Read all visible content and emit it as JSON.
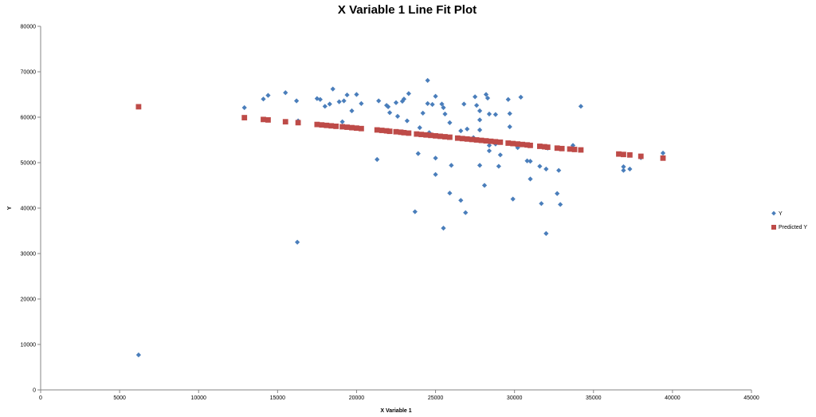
{
  "chart_data": {
    "type": "scatter",
    "title": "X Variable 1 Line Fit  Plot",
    "xlabel": "X Variable 1",
    "ylabel": "Y",
    "xlim": [
      0,
      45000
    ],
    "ylim": [
      0,
      80000
    ],
    "xticks": [
      "0",
      "5000",
      "10000",
      "15000",
      "20000",
      "25000",
      "30000",
      "35000",
      "40000",
      "45000"
    ],
    "yticks": [
      "0",
      "10000",
      "20000",
      "30000",
      "40000",
      "50000",
      "60000",
      "70000",
      "80000"
    ],
    "grid": false,
    "legend_position": "right",
    "series": [
      {
        "name": "Y",
        "color": "#4a7ebb",
        "marker": "diamond",
        "points": [
          [
            6200,
            7700
          ],
          [
            12900,
            62100
          ],
          [
            14100,
            64000
          ],
          [
            14400,
            64800
          ],
          [
            15500,
            65400
          ],
          [
            16200,
            63600
          ],
          [
            16300,
            59200
          ],
          [
            16250,
            32500
          ],
          [
            17500,
            64100
          ],
          [
            17700,
            63900
          ],
          [
            18000,
            62400
          ],
          [
            18300,
            62900
          ],
          [
            18500,
            66200
          ],
          [
            18900,
            63400
          ],
          [
            19100,
            59000
          ],
          [
            19200,
            63600
          ],
          [
            19400,
            64900
          ],
          [
            19700,
            61400
          ],
          [
            20000,
            65000
          ],
          [
            20300,
            63000
          ],
          [
            21300,
            50700
          ],
          [
            21400,
            63600
          ],
          [
            21900,
            62600
          ],
          [
            22000,
            62300
          ],
          [
            22100,
            61000
          ],
          [
            22500,
            63200
          ],
          [
            22600,
            60200
          ],
          [
            22900,
            63500
          ],
          [
            23000,
            64000
          ],
          [
            23300,
            65200
          ],
          [
            23200,
            59200
          ],
          [
            23700,
            39200
          ],
          [
            23900,
            52000
          ],
          [
            24000,
            57700
          ],
          [
            24200,
            60900
          ],
          [
            24500,
            68100
          ],
          [
            24500,
            63000
          ],
          [
            24600,
            56600
          ],
          [
            24800,
            62800
          ],
          [
            25000,
            64600
          ],
          [
            25000,
            51000
          ],
          [
            25000,
            47400
          ],
          [
            25400,
            62900
          ],
          [
            25500,
            62100
          ],
          [
            25500,
            35600
          ],
          [
            25600,
            60700
          ],
          [
            25900,
            58800
          ],
          [
            26000,
            49400
          ],
          [
            25900,
            43300
          ],
          [
            26600,
            57000
          ],
          [
            26600,
            41700
          ],
          [
            26800,
            62900
          ],
          [
            27000,
            57400
          ],
          [
            26900,
            39000
          ],
          [
            27400,
            55500
          ],
          [
            27500,
            64500
          ],
          [
            27600,
            62600
          ],
          [
            27800,
            61400
          ],
          [
            27800,
            59400
          ],
          [
            27800,
            57200
          ],
          [
            27800,
            49400
          ],
          [
            28100,
            45000
          ],
          [
            28200,
            65000
          ],
          [
            28300,
            64200
          ],
          [
            28400,
            60700
          ],
          [
            28400,
            53800
          ],
          [
            28400,
            52600
          ],
          [
            28800,
            60600
          ],
          [
            28800,
            54100
          ],
          [
            29000,
            49200
          ],
          [
            29100,
            51700
          ],
          [
            29600,
            63900
          ],
          [
            29700,
            60800
          ],
          [
            29700,
            57900
          ],
          [
            29900,
            42000
          ],
          [
            30200,
            53300
          ],
          [
            30400,
            64400
          ],
          [
            30800,
            50400
          ],
          [
            31000,
            50300
          ],
          [
            31000,
            46400
          ],
          [
            31600,
            49200
          ],
          [
            31700,
            41000
          ],
          [
            32000,
            48600
          ],
          [
            32000,
            34400
          ],
          [
            32100,
            53200
          ],
          [
            32700,
            43200
          ],
          [
            32800,
            48300
          ],
          [
            32900,
            40800
          ],
          [
            33500,
            52900
          ],
          [
            33700,
            53800
          ],
          [
            34200,
            62400
          ],
          [
            36900,
            49100
          ],
          [
            36900,
            48300
          ],
          [
            37300,
            48600
          ],
          [
            38000,
            51100
          ],
          [
            39400,
            52100
          ]
        ]
      },
      {
        "name": "Predicted Y",
        "color": "#be4b48",
        "marker": "square",
        "points": [
          [
            6200,
            62300
          ],
          [
            12900,
            59900
          ],
          [
            14100,
            59500
          ],
          [
            14400,
            59400
          ],
          [
            15500,
            59000
          ],
          [
            16300,
            58800
          ],
          [
            17500,
            58400
          ],
          [
            17800,
            58300
          ],
          [
            18100,
            58200
          ],
          [
            18400,
            58100
          ],
          [
            18700,
            58000
          ],
          [
            19100,
            57900
          ],
          [
            19400,
            57800
          ],
          [
            19700,
            57700
          ],
          [
            20000,
            57600
          ],
          [
            20300,
            57500
          ],
          [
            21300,
            57200
          ],
          [
            21600,
            57100
          ],
          [
            21900,
            57000
          ],
          [
            22100,
            56900
          ],
          [
            22500,
            56800
          ],
          [
            22800,
            56700
          ],
          [
            23000,
            56600
          ],
          [
            23300,
            56500
          ],
          [
            23800,
            56300
          ],
          [
            24100,
            56200
          ],
          [
            24400,
            56100
          ],
          [
            24700,
            56000
          ],
          [
            25000,
            55900
          ],
          [
            25300,
            55800
          ],
          [
            25600,
            55700
          ],
          [
            25900,
            55600
          ],
          [
            26400,
            55400
          ],
          [
            26700,
            55300
          ],
          [
            27000,
            55200
          ],
          [
            27300,
            55100
          ],
          [
            27600,
            55000
          ],
          [
            27900,
            54900
          ],
          [
            28200,
            54800
          ],
          [
            28500,
            54700
          ],
          [
            28800,
            54600
          ],
          [
            29100,
            54500
          ],
          [
            29600,
            54300
          ],
          [
            29900,
            54200
          ],
          [
            30200,
            54100
          ],
          [
            30500,
            54000
          ],
          [
            30800,
            53900
          ],
          [
            31000,
            53800
          ],
          [
            31600,
            53600
          ],
          [
            31900,
            53500
          ],
          [
            32100,
            53400
          ],
          [
            32700,
            53200
          ],
          [
            33000,
            53100
          ],
          [
            33500,
            53000
          ],
          [
            33800,
            52900
          ],
          [
            34200,
            52800
          ],
          [
            36600,
            51900
          ],
          [
            36900,
            51800
          ],
          [
            37300,
            51700
          ],
          [
            38000,
            51400
          ],
          [
            39400,
            51000
          ]
        ]
      }
    ]
  }
}
